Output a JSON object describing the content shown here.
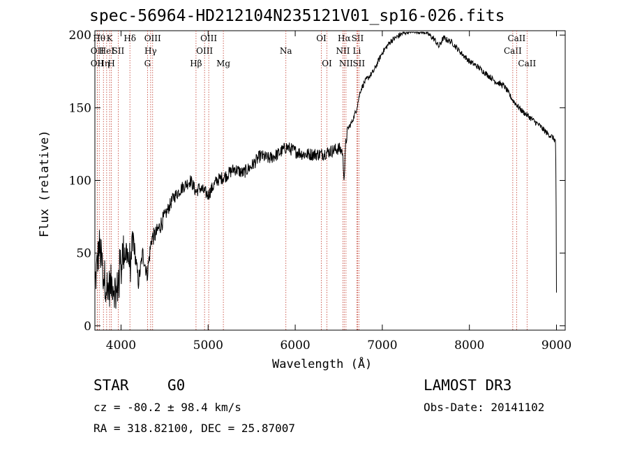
{
  "title": "spec-56964-HD212104N235121V01_sp16-026.fits",
  "info": {
    "object_class": "STAR",
    "subclass": "G0",
    "survey": "LAMOST DR3",
    "cz": "cz = -80.2 ± 98.4 km/s",
    "obs_date": "Obs-Date: 20141102",
    "coords": "RA = 318.82100, DEC =  25.87007"
  },
  "chart_data": {
    "type": "line",
    "title": "spec-56964-HD212104N235121V01_sp16-026.fits",
    "xlabel": "Wavelength (Å)",
    "ylabel": "Flux (relative)",
    "xlim": [
      3700,
      9100
    ],
    "ylim": [
      -3,
      203
    ],
    "xticks": [
      4000,
      5000,
      6000,
      7000,
      8000,
      9000
    ],
    "yticks": [
      0,
      50,
      100,
      150,
      200
    ],
    "grid": false,
    "legend": "none",
    "colors": {
      "line": "#000000",
      "marker": "#c0392b",
      "axis": "#000000"
    },
    "series": [
      {
        "name": "flux",
        "x": [
          3700,
          3750,
          3800,
          3850,
          3900,
          3950,
          4000,
          4050,
          4100,
          4150,
          4200,
          4250,
          4300,
          4350,
          4400,
          4500,
          4600,
          4700,
          4800,
          4861,
          4900,
          5000,
          5100,
          5200,
          5300,
          5400,
          5500,
          5600,
          5700,
          5800,
          5900,
          6000,
          6100,
          6200,
          6300,
          6400,
          6500,
          6540,
          6563,
          6580,
          6600,
          6650,
          6700,
          6750,
          6800,
          6900,
          7000,
          7100,
          7200,
          7300,
          7400,
          7500,
          7600,
          7650,
          7700,
          7800,
          7900,
          8000,
          8100,
          8200,
          8300,
          8400,
          8500,
          8600,
          8700,
          8800,
          8900,
          8950,
          8990,
          8995,
          9000
        ],
        "y": [
          28,
          55,
          35,
          25,
          30,
          22,
          48,
          52,
          45,
          55,
          30,
          50,
          35,
          60,
          63,
          75,
          88,
          95,
          100,
          92,
          95,
          90,
          100,
          103,
          108,
          105,
          110,
          117,
          115,
          118,
          123,
          120,
          118,
          118,
          118,
          120,
          122,
          120,
          102,
          125,
          135,
          140,
          148,
          162,
          168,
          175,
          188,
          196,
          200,
          203,
          203,
          202,
          197,
          192,
          198,
          195,
          188,
          182,
          178,
          173,
          168,
          165,
          155,
          148,
          143,
          138,
          132,
          130,
          127,
          95,
          22
        ]
      }
    ],
    "markers": [
      {
        "wavelength": 3727,
        "label": "OII",
        "row": 2
      },
      {
        "wavelength": 3727,
        "label": "OII",
        "row": 3
      },
      {
        "wavelength": 3750,
        "label": "Hθ",
        "row": 1
      },
      {
        "wavelength": 3798,
        "label": "Hη",
        "row": 3
      },
      {
        "wavelength": 3835,
        "label": "HeI",
        "row": 2
      },
      {
        "wavelength": 3869,
        "label": "K",
        "row": 1
      },
      {
        "wavelength": 3889,
        "label": "H",
        "row": 3
      },
      {
        "wavelength": 3968,
        "label": "SII",
        "row": 2
      },
      {
        "wavelength": 4102,
        "label": "Hδ",
        "row": 1
      },
      {
        "wavelength": 4304,
        "label": "G",
        "row": 3
      },
      {
        "wavelength": 4340,
        "label": "Hγ",
        "row": 2
      },
      {
        "wavelength": 4363,
        "label": "OIII",
        "row": 1
      },
      {
        "wavelength": 4861,
        "label": "Hβ",
        "row": 3
      },
      {
        "wavelength": 4959,
        "label": "OIII",
        "row": 2
      },
      {
        "wavelength": 5007,
        "label": "OIII",
        "row": 1
      },
      {
        "wavelength": 5175,
        "label": "Mg",
        "row": 3
      },
      {
        "wavelength": 5893,
        "label": "Na",
        "row": 2
      },
      {
        "wavelength": 6300,
        "label": "OI",
        "row": 1
      },
      {
        "wavelength": 6364,
        "label": "OI",
        "row": 3
      },
      {
        "wavelength": 6548,
        "label": "NII",
        "row": 2
      },
      {
        "wavelength": 6563,
        "label": "Hα",
        "row": 1
      },
      {
        "wavelength": 6583,
        "label": "NII",
        "row": 3
      },
      {
        "wavelength": 6708,
        "label": "Li",
        "row": 2
      },
      {
        "wavelength": 6716,
        "label": "SII",
        "row": 1
      },
      {
        "wavelength": 6731,
        "label": "SII",
        "row": 3
      },
      {
        "wavelength": 8498,
        "label": "CaII",
        "row": 2
      },
      {
        "wavelength": 8542,
        "label": "CaII",
        "row": 1
      },
      {
        "wavelength": 8662,
        "label": "CaII",
        "row": 3
      }
    ]
  }
}
